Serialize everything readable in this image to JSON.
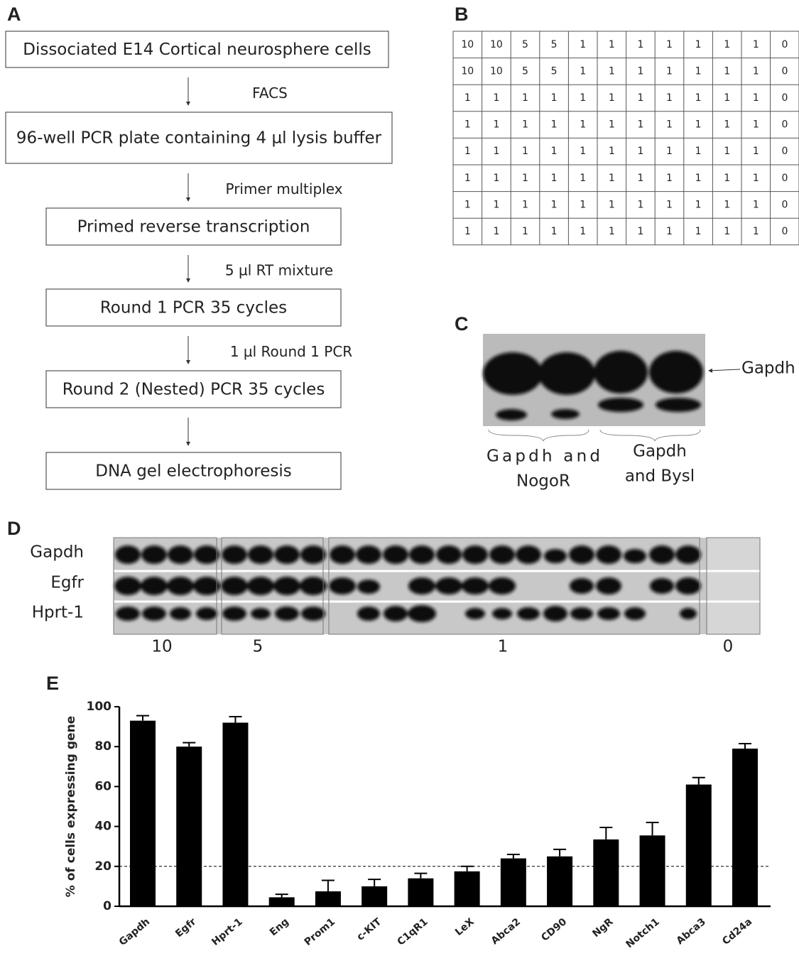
{
  "panel_a": {
    "label": "A",
    "steps": [
      "Dissociated E14 Cortical neurosphere cells",
      "96-well PCR plate containing 4 µl lysis buffer",
      "Primed reverse transcription",
      "Round 1 PCR 35 cycles",
      "Round 2 (Nested) PCR 35 cycles",
      "DNA gel electrophoresis"
    ],
    "transitions": [
      "FACS",
      "Primer multiplex",
      "5 µl RT mixture",
      "1 µl Round 1 PCR",
      ""
    ]
  },
  "panel_b": {
    "label": "B",
    "table": {
      "rows": [
        [
          10,
          10,
          5,
          5,
          1,
          1,
          1,
          1,
          1,
          1,
          1,
          0
        ],
        [
          10,
          10,
          5,
          5,
          1,
          1,
          1,
          1,
          1,
          1,
          1,
          0
        ],
        [
          1,
          1,
          1,
          1,
          1,
          1,
          1,
          1,
          1,
          1,
          1,
          0
        ],
        [
          1,
          1,
          1,
          1,
          1,
          1,
          1,
          1,
          1,
          1,
          1,
          0
        ],
        [
          1,
          1,
          1,
          1,
          1,
          1,
          1,
          1,
          1,
          1,
          1,
          0
        ],
        [
          1,
          1,
          1,
          1,
          1,
          1,
          1,
          1,
          1,
          1,
          1,
          0
        ],
        [
          1,
          1,
          1,
          1,
          1,
          1,
          1,
          1,
          1,
          1,
          1,
          0
        ],
        [
          1,
          1,
          1,
          1,
          1,
          1,
          1,
          1,
          1,
          1,
          1,
          0
        ]
      ]
    }
  },
  "panel_c": {
    "label": "C",
    "band_label": "Gapdh",
    "groups": [
      {
        "lines": [
          "Gapdh and",
          "NogoR"
        ]
      },
      {
        "lines": [
          "Gapdh",
          "and Bysl"
        ]
      }
    ]
  },
  "panel_d": {
    "label": "D",
    "rows": [
      "Gapdh",
      "Egfr",
      "Hprt-1"
    ],
    "groups": [
      "10",
      "5",
      "1",
      "0"
    ]
  },
  "panel_e_label": "E",
  "chart_data": {
    "type": "bar",
    "ylabel": "% of cells expressing gene",
    "categories": [
      "Gapdh",
      "Egfr",
      "Hprt-1",
      "Eng",
      "Prom1",
      "c-KIT",
      "C1qR1",
      "LeX",
      "Abca2",
      "CD90",
      "NgR",
      "Notch1",
      "Abca3",
      "Cd24a"
    ],
    "values": [
      93,
      80,
      92,
      4.5,
      7.5,
      10,
      14,
      17.5,
      24,
      25,
      33.5,
      35.5,
      61,
      79
    ],
    "errors": [
      2.5,
      2,
      3,
      1.5,
      5.5,
      3.5,
      2.5,
      2.5,
      2,
      3.5,
      6,
      6.5,
      3.5,
      2.5
    ],
    "color": "#000000",
    "ylim": [
      0,
      100
    ],
    "yticks": [
      0,
      20,
      40,
      60,
      80,
      100
    ],
    "reference_line": 20
  }
}
